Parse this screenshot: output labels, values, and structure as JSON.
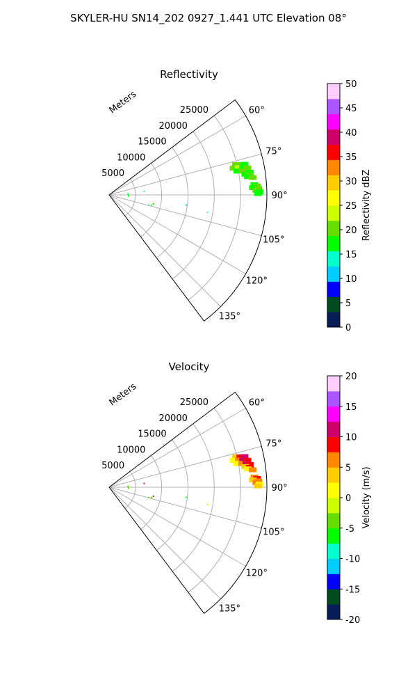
{
  "suptitle": "SKYLER-HU  SN14_202  0927_1.441 UTC Elevation 08°",
  "chart_data": [
    {
      "type": "polar-sector",
      "title": "Reflectivity",
      "radial_axis_label": "Meters",
      "radial_ticks": [
        5000,
        10000,
        15000,
        20000,
        25000
      ],
      "angle_ticks": [
        60,
        75,
        90,
        105,
        120,
        135
      ],
      "angle_range_deg": [
        53,
        143
      ],
      "range_max_m": 30000,
      "colorbar": {
        "label": "Reflectivity dBZ",
        "range": [
          0,
          50
        ],
        "ticks": [
          0,
          5,
          10,
          15,
          20,
          25,
          30,
          35,
          40,
          45,
          50
        ],
        "stops": [
          "#081d58",
          "#004d20",
          "#0000ff",
          "#00ccff",
          "#00ffcc",
          "#00ff00",
          "#66dd00",
          "#ccff00",
          "#ffff00",
          "#ffcc00",
          "#ff8800",
          "#ff0000",
          "#cc0066",
          "#ff00ff",
          "#aa55ff",
          "#ffccff"
        ]
      },
      "echoes": [
        {
          "az": 76.6,
          "r_m": 24800,
          "value": 19
        },
        {
          "az": 77.0,
          "r_m": 25600,
          "value": 21
        },
        {
          "az": 77.3,
          "r_m": 26400,
          "value": 17
        },
        {
          "az": 77.9,
          "r_m": 24200,
          "value": 20
        },
        {
          "az": 78.2,
          "r_m": 25200,
          "value": 22
        },
        {
          "az": 78.6,
          "r_m": 26000,
          "value": 18
        },
        {
          "az": 79.0,
          "r_m": 26800,
          "value": 20
        },
        {
          "az": 79.5,
          "r_m": 24800,
          "value": 16
        },
        {
          "az": 79.9,
          "r_m": 25700,
          "value": 19
        },
        {
          "az": 80.3,
          "r_m": 26500,
          "value": 21
        },
        {
          "az": 80.9,
          "r_m": 27100,
          "value": 17
        },
        {
          "az": 81.4,
          "r_m": 26200,
          "value": 18
        },
        {
          "az": 82.0,
          "r_m": 27000,
          "value": 20
        },
        {
          "az": 82.5,
          "r_m": 26600,
          "value": 16
        },
        {
          "az": 83.1,
          "r_m": 27500,
          "value": 19
        },
        {
          "az": 86.0,
          "r_m": 27700,
          "value": 18
        },
        {
          "az": 86.6,
          "r_m": 28200,
          "value": 21
        },
        {
          "az": 87.1,
          "r_m": 27400,
          "value": 17
        },
        {
          "az": 87.6,
          "r_m": 28400,
          "value": 19
        },
        {
          "az": 88.2,
          "r_m": 28000,
          "value": 20
        },
        {
          "az": 88.9,
          "r_m": 28600,
          "value": 18
        },
        {
          "az": 89.5,
          "r_m": 28300,
          "value": 16
        },
        {
          "az": 84.0,
          "r_m": 6700,
          "value": 15
        },
        {
          "az": 97.5,
          "r_m": 14800,
          "value": 11
        },
        {
          "az": 100.0,
          "r_m": 19000,
          "value": 13
        },
        {
          "az": 103.5,
          "r_m": 8300,
          "value": 19
        },
        {
          "az": 104.5,
          "r_m": 7800,
          "value": 14
        },
        {
          "az": 101.5,
          "r_m": 8600,
          "value": 16
        },
        {
          "az": 87.0,
          "r_m": 3600,
          "value": 17
        },
        {
          "az": 93.0,
          "r_m": 3700,
          "value": 16
        }
      ]
    },
    {
      "type": "polar-sector",
      "title": "Velocity",
      "radial_axis_label": "Meters",
      "radial_ticks": [
        5000,
        10000,
        15000,
        20000,
        25000
      ],
      "angle_ticks": [
        60,
        75,
        90,
        105,
        120,
        135
      ],
      "angle_range_deg": [
        53,
        143
      ],
      "range_max_m": 30000,
      "colorbar": {
        "label": "Velocity (m/s)",
        "range": [
          -20,
          20
        ],
        "ticks": [
          -20,
          -15,
          -10,
          -5,
          0,
          5,
          10,
          15,
          20
        ],
        "stops": [
          "#081d58",
          "#004d20",
          "#0000ff",
          "#00ccff",
          "#00ffcc",
          "#00ff00",
          "#66dd00",
          "#ccff00",
          "#ffff00",
          "#ffcc00",
          "#ff8800",
          "#ff0000",
          "#cc0066",
          "#ff00ff",
          "#aa55ff",
          "#ffccff"
        ]
      },
      "echoes": [
        {
          "az": 76.6,
          "r_m": 24800,
          "value": 3
        },
        {
          "az": 77.0,
          "r_m": 25600,
          "value": 8
        },
        {
          "az": 77.3,
          "r_m": 26400,
          "value": 10
        },
        {
          "az": 77.9,
          "r_m": 24200,
          "value": 2
        },
        {
          "az": 78.2,
          "r_m": 25200,
          "value": 7
        },
        {
          "az": 78.6,
          "r_m": 26000,
          "value": 11
        },
        {
          "az": 79.0,
          "r_m": 26800,
          "value": 9
        },
        {
          "az": 79.5,
          "r_m": 24800,
          "value": 1
        },
        {
          "az": 79.9,
          "r_m": 25700,
          "value": 6
        },
        {
          "az": 80.3,
          "r_m": 26500,
          "value": 10
        },
        {
          "az": 80.9,
          "r_m": 27100,
          "value": 9
        },
        {
          "az": 81.4,
          "r_m": 26200,
          "value": 4
        },
        {
          "az": 82.0,
          "r_m": 27000,
          "value": 8
        },
        {
          "az": 82.5,
          "r_m": 26600,
          "value": 2
        },
        {
          "az": 83.1,
          "r_m": 27500,
          "value": 5
        },
        {
          "az": 86.0,
          "r_m": 27700,
          "value": 6
        },
        {
          "az": 86.6,
          "r_m": 28200,
          "value": 8
        },
        {
          "az": 87.1,
          "r_m": 27400,
          "value": 3
        },
        {
          "az": 87.6,
          "r_m": 28400,
          "value": 7
        },
        {
          "az": 88.2,
          "r_m": 28000,
          "value": 5
        },
        {
          "az": 88.9,
          "r_m": 28600,
          "value": 2
        },
        {
          "az": 89.5,
          "r_m": 28300,
          "value": 4
        },
        {
          "az": 84.0,
          "r_m": 6700,
          "value": 11
        },
        {
          "az": 97.5,
          "r_m": 14800,
          "value": -7
        },
        {
          "az": 100.0,
          "r_m": 19000,
          "value": -2
        },
        {
          "az": 103.5,
          "r_m": 8300,
          "value": -5
        },
        {
          "az": 104.5,
          "r_m": 7800,
          "value": -3
        },
        {
          "az": 101.5,
          "r_m": 8600,
          "value": 9
        },
        {
          "az": 87.0,
          "r_m": 3600,
          "value": -4
        },
        {
          "az": 93.0,
          "r_m": 3700,
          "value": -3
        }
      ]
    }
  ]
}
